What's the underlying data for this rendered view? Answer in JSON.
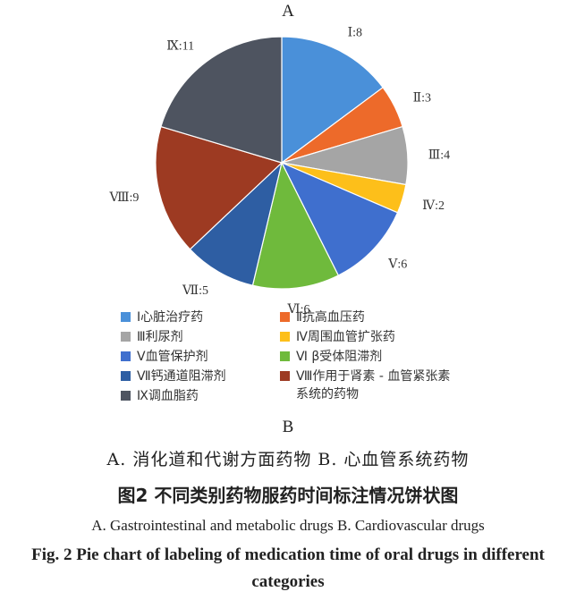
{
  "panel_label_top": "A",
  "panel_label_bottom": "B",
  "chart_data": {
    "type": "pie",
    "title": "",
    "slices": [
      {
        "label": "Ⅰ:8",
        "value": 8,
        "color": "#4a90d9"
      },
      {
        "label": "Ⅱ:3",
        "value": 3,
        "color": "#ed6a2a"
      },
      {
        "label": "Ⅲ:4",
        "value": 4,
        "color": "#a5a5a5"
      },
      {
        "label": "Ⅳ:2",
        "value": 2,
        "color": "#fdbf1a"
      },
      {
        "label": "Ⅴ:6",
        "value": 6,
        "color": "#3f6fce"
      },
      {
        "label": "Ⅵ:6",
        "value": 6,
        "color": "#6fba3c"
      },
      {
        "label": "Ⅶ:5",
        "value": 5,
        "color": "#2e5ea3"
      },
      {
        "label": "Ⅷ:9",
        "value": 9,
        "color": "#9d3a22"
      },
      {
        "label": "Ⅸ:11",
        "value": 11,
        "color": "#4e5460"
      }
    ],
    "legend": [
      "Ⅰ心脏治疗药",
      "Ⅱ抗高血压药",
      "Ⅲ利尿剂",
      "Ⅳ周围血管扩张药",
      "Ⅴ血管保护剂",
      "Ⅵ β受体阻滞剂",
      "Ⅶ钙通道阻滞剂",
      "Ⅷ作用于肾素 - 血管紧张素\n系统的药物",
      "Ⅸ调血脂药"
    ],
    "legend_placement": "bottom"
  },
  "captions": {
    "subtitle_cn": "A. 消化道和代谢方面药物   B. 心血管系统药物",
    "figure_cn": "图2   不同类别药物服药时间标注情况饼状图",
    "subtitle_en": "A. Gastrointestinal  and  metabolic  drugs   B. Cardiovascular  drugs",
    "figure_en": "Fig. 2   Pie chart of labeling of medication time of oral drugs in different categories"
  }
}
